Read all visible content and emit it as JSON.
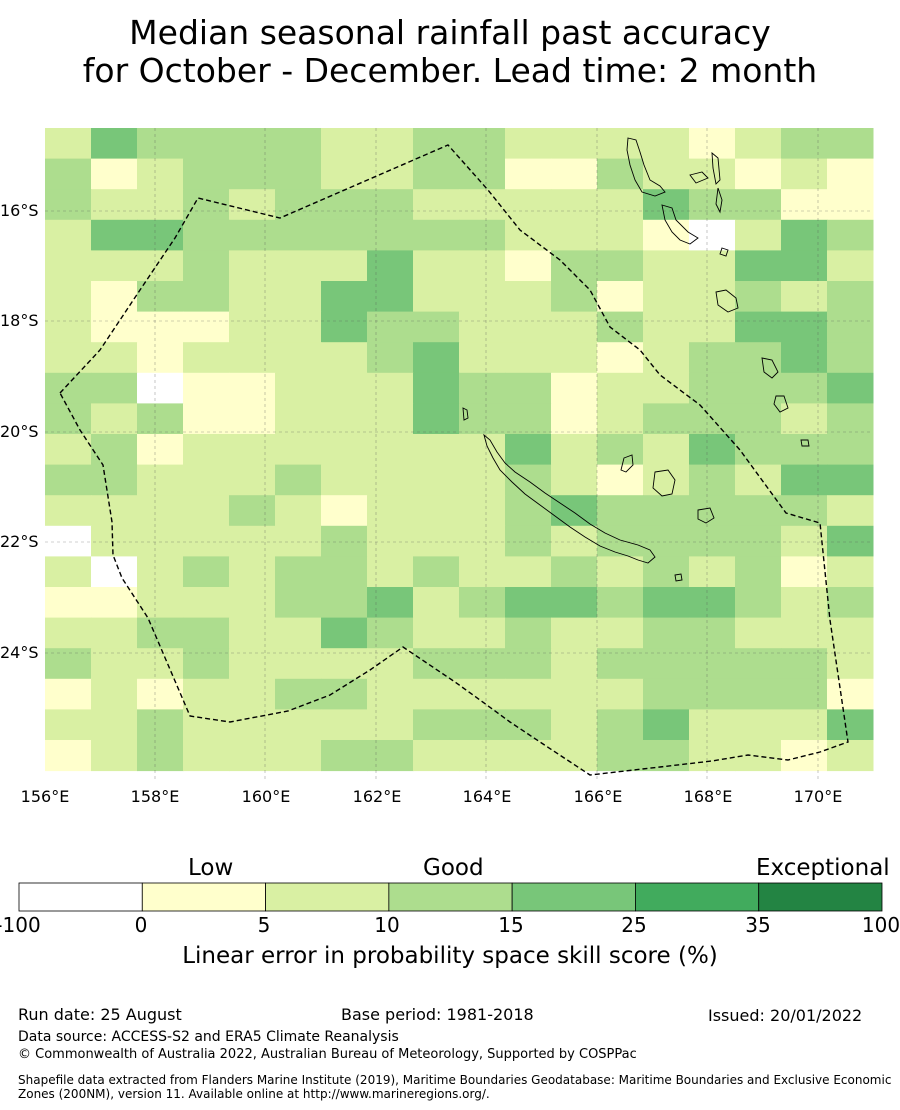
{
  "title": {
    "line1": "Median seasonal rainfall past accuracy",
    "line2": "for October - December. Lead time: 2 month"
  },
  "map": {
    "lat_labels": [
      "16°S",
      "18°S",
      "20°S",
      "22°S",
      "24°S"
    ],
    "lon_labels": [
      "156°E",
      "158°E",
      "160°E",
      "162°E",
      "164°E",
      "166°E",
      "168°E",
      "170°E"
    ],
    "boundary": "dashed EEZ boundary (New Caledonia)",
    "landmass": "New Caledonia and Vanuatu coastlines"
  },
  "colorbar": {
    "categories": [
      "Low",
      "Good",
      "Exceptional"
    ],
    "tick_labels": [
      "-100",
      "0",
      "5",
      "10",
      "15",
      "25",
      "35",
      "100"
    ],
    "colors": [
      "#ffffff",
      "#ffffcc",
      "#d9f0a3",
      "#addd8e",
      "#78c679",
      "#41ab5d",
      "#238443"
    ],
    "label": "Linear error in probability space skill score (%)"
  },
  "footer": {
    "run_date": "Run date: 25 August",
    "base_period": "Base period: 1981-2018",
    "issued": "Issued: 20/01/2022",
    "data_source": "Data source: ACCESS-S2 and ERA5 Climate Reanalysis",
    "copyright": "© Commonwealth of Australia 2022, Australian Bureau of Meteorology, Supported by COSPPac",
    "shapefile_1": "Shapefile data extracted from Flanders Marine Institute (2019), Maritime Boundaries Geodatabase: Maritime Boundaries and Exclusive Economic",
    "shapefile_2": "Zones (200NM), version 11. Available online at http://www.marineregions.org/."
  }
}
